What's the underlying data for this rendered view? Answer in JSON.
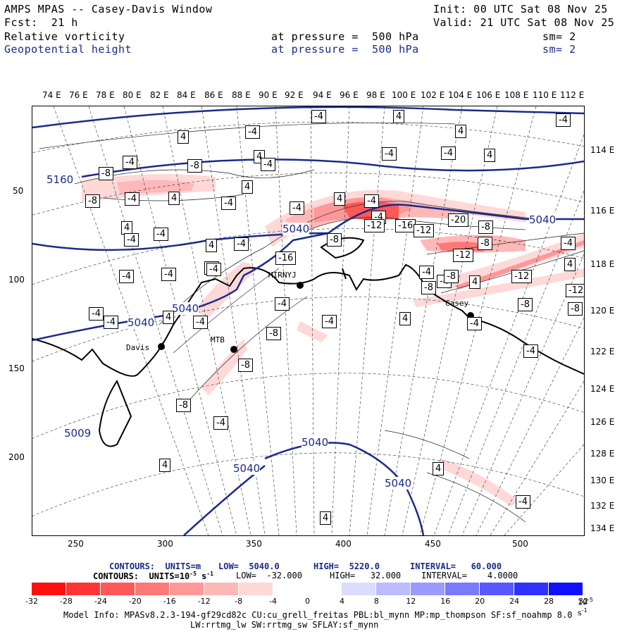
{
  "header": {
    "title": "AMPS MPAS -- Casey-Davis Window",
    "init": "Init: 00 UTC Sat 08 Nov 25",
    "fcst": "Fcst:  21 h",
    "valid": "Valid: 21 UTC Sat 08 Nov 25",
    "field1": "Relative vorticity",
    "field2": "Geopotential height",
    "pressure1": "at pressure =  500 hPa",
    "pressure2": "at pressure =  500 hPa",
    "sm1": "sm= 2",
    "sm2": "sm= 2"
  },
  "axes": {
    "top_lon": [
      "74 E",
      "76 E",
      "78 E",
      "80 E",
      "82 E",
      "84 E",
      "86 E",
      "88 E",
      "90 E",
      "92 E",
      "94 E",
      "96 E",
      "98 E",
      "100 E",
      "102 E",
      "104 E",
      "106 E",
      "108 E",
      "110 E",
      "112 E"
    ],
    "right_lon": [
      "114 E",
      "116 E",
      "118 E",
      "120 E",
      "122 E",
      "124 E",
      "126 E",
      "128 E",
      "130 E",
      "132 E",
      "134 E"
    ],
    "left_y": [
      "50",
      "100",
      "150",
      "200"
    ],
    "bottom_x": [
      "250",
      "300",
      "350",
      "400",
      "450",
      "500"
    ]
  },
  "places": [
    {
      "name": "MIRNYJ"
    },
    {
      "name": "Davis"
    },
    {
      "name": "MTB"
    },
    {
      "name": "Casey"
    }
  ],
  "contour_labels": {
    "height": [
      "5160",
      "5040",
      "5040",
      "5040",
      "5040",
      "5040",
      "5040",
      "5040",
      "5009"
    ],
    "vorticity": [
      "-4",
      "4",
      "-4",
      "4",
      "-4",
      "4",
      "4",
      "-4",
      "-4",
      "4",
      "-8",
      "-4",
      "-8",
      "-4",
      "-8",
      "-4",
      "4",
      "4",
      "-4",
      "4",
      "4",
      "-4",
      "-4",
      "-4",
      "-4",
      "-4",
      "-4",
      "-4",
      "4",
      "-4",
      "-8",
      "-8",
      "-4",
      "-4",
      "-4",
      "4",
      "-8",
      "-4",
      "-4",
      "4",
      "-4",
      "-4",
      "-4",
      "-16",
      "-12",
      "-8",
      "-16",
      "-20",
      "-12",
      "-8",
      "-12",
      "-8",
      "-4",
      "4",
      "-4",
      "-8",
      "4",
      "-12",
      "-12",
      "-8",
      "-8",
      "-4",
      "-8",
      "4",
      "-4",
      "4",
      "-4",
      "4",
      "-4"
    ]
  },
  "footer": {
    "contours1_label": "CONTOURS:  UNITS=m",
    "contours1_low": "LOW=  5040.0",
    "contours1_high": "HIGH=  5220.0",
    "contours1_interval": "INTERVAL=   60.000",
    "contours2_label": "CONTOURS:  UNITS=10",
    "contours2_units_exp": "-5",
    "contours2_units_rest": " s",
    "contours2_units_exp2": "-1",
    "contours2_low": "LOW=  -32.000",
    "contours2_high": "HIGH=   32.000",
    "contours2_interval": "INTERVAL=    4.0000"
  },
  "colorbar": {
    "colors": [
      "#ff1010",
      "#ff3535",
      "#ff5858",
      "#ff7878",
      "#ff9898",
      "#ffb8b8",
      "#ffd8d8",
      "#ffffff",
      "#ffffff",
      "#dcdcff",
      "#bcbcff",
      "#9a9aff",
      "#7a7aff",
      "#5858ff",
      "#3030ff",
      "#1010ff"
    ],
    "labels": [
      "-32",
      "-28",
      "-24",
      "-20",
      "-16",
      "-12",
      "-8",
      "-4",
      "0",
      "4",
      "8",
      "12",
      "16",
      "20",
      "24",
      "28",
      "32"
    ],
    "units": "10",
    "units_exp": "-5",
    "units_s": " s",
    "units_exp2": "-1"
  },
  "model_info": {
    "line1": "Model Info: MPASv8.2.3-194-gf29cd82c CU:cu_grell_freitas PBL:bl_mynn MP:mp_thompson SF:sf_noahmp 8.0",
    "line2": "LW:rrtmg_lw SW:rrtmg_sw SFLAY:sf_mynn"
  }
}
